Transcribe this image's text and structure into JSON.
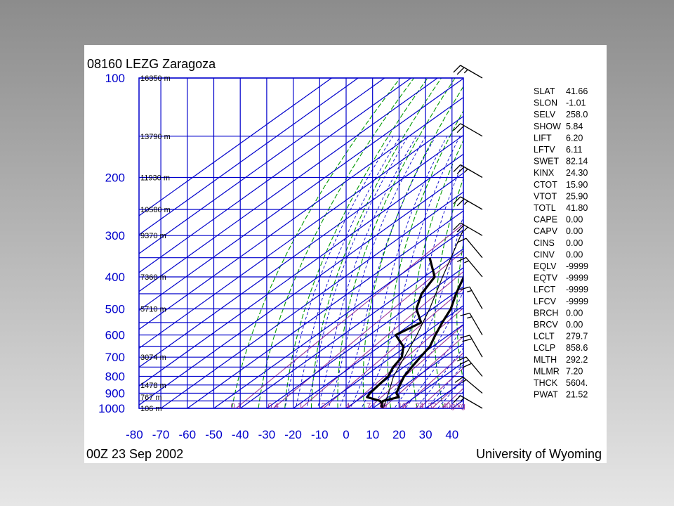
{
  "header": {
    "station_title": "08160 LEZG Zaragoza",
    "time_label": "00Z 23 Sep 2002",
    "source_label": "University of Wyoming"
  },
  "chart_data": {
    "type": "line",
    "title": "08160 LEZG Zaragoza",
    "diagram": "skew-T log-P",
    "y_axis": {
      "quantity": "pressure",
      "scale": "log",
      "reversed": true,
      "ticks": [
        100,
        200,
        300,
        400,
        500,
        600,
        700,
        800,
        900,
        1000
      ]
    },
    "x_axis": {
      "quantity": "temperature",
      "skewed": true,
      "ticks": [
        -80,
        -70,
        -60,
        -50,
        -40,
        -30,
        -20,
        -10,
        0,
        10,
        20,
        30,
        40
      ]
    },
    "height_labels": [
      {
        "p": 100,
        "text": "16350 m"
      },
      {
        "p": 150,
        "text": "13790 m"
      },
      {
        "p": 200,
        "text": "11930 m"
      },
      {
        "p": 250,
        "text": "10580 m"
      },
      {
        "p": 300,
        "text": "9370 m"
      },
      {
        "p": 400,
        "text": "7360 m"
      },
      {
        "p": 500,
        "text": "5710 m"
      },
      {
        "p": 700,
        "text": "3074 m"
      },
      {
        "p": 850,
        "text": "1478 m"
      },
      {
        "p": 925,
        "text": "767 m"
      },
      {
        "p": 1000,
        "text": "106 m"
      }
    ],
    "mixing_ratio_labels": [
      "0.1",
      "0.4",
      "1",
      "2",
      "4",
      "7",
      "10",
      "16",
      "24",
      "32",
      "40g/kg"
    ],
    "series": [
      {
        "role": "temperature",
        "color": "#000000",
        "points": [
          [
            1000,
            14
          ],
          [
            985,
            12
          ],
          [
            950,
            10
          ],
          [
            925,
            14
          ],
          [
            900,
            11
          ],
          [
            850,
            8
          ],
          [
            800,
            5
          ],
          [
            750,
            3
          ],
          [
            700,
            1
          ],
          [
            650,
            -1
          ],
          [
            600,
            -5
          ],
          [
            550,
            -9
          ],
          [
            500,
            -13
          ],
          [
            450,
            -19
          ],
          [
            400,
            -25
          ],
          [
            350,
            -33
          ],
          [
            300,
            -41
          ],
          [
            250,
            -49
          ],
          [
            200,
            -57
          ],
          [
            175,
            -58
          ],
          [
            150,
            -57
          ],
          [
            125,
            -56
          ],
          [
            100,
            -54
          ]
        ]
      },
      {
        "role": "dewpoint",
        "color": "#000000",
        "points": [
          [
            1000,
            14
          ],
          [
            950,
            9
          ],
          [
            925,
            2
          ],
          [
            900,
            1
          ],
          [
            850,
            0
          ],
          [
            800,
            -1
          ],
          [
            750,
            -4
          ],
          [
            700,
            -6
          ],
          [
            650,
            -11
          ],
          [
            600,
            -20
          ],
          [
            550,
            -17
          ],
          [
            500,
            -26
          ],
          [
            450,
            -32
          ],
          [
            400,
            -36
          ],
          [
            350,
            -48
          ]
        ]
      },
      {
        "role": "parcel",
        "color": "#000000",
        "points": [
          [
            1000,
            14
          ],
          [
            900,
            8
          ],
          [
            800,
            1
          ],
          [
            700,
            -5
          ],
          [
            600,
            -12
          ],
          [
            500,
            -21
          ],
          [
            400,
            -33
          ],
          [
            300,
            -48
          ],
          [
            250,
            -57
          ],
          [
            200,
            -67
          ],
          [
            180,
            -70
          ]
        ]
      }
    ],
    "wind_barbs": [
      {
        "p": 100,
        "dir": 300,
        "kt": 25
      },
      {
        "p": 150,
        "dir": 300,
        "kt": 20
      },
      {
        "p": 200,
        "dir": 300,
        "kt": 25
      },
      {
        "p": 250,
        "dir": 300,
        "kt": 25
      },
      {
        "p": 300,
        "dir": 300,
        "kt": 25
      },
      {
        "p": 350,
        "dir": 320,
        "kt": 10
      },
      {
        "p": 400,
        "dir": 320,
        "kt": 15
      },
      {
        "p": 500,
        "dir": 330,
        "kt": 15
      },
      {
        "p": 600,
        "dir": 330,
        "kt": 15
      },
      {
        "p": 700,
        "dir": 330,
        "kt": 20
      },
      {
        "p": 800,
        "dir": 320,
        "kt": 30
      },
      {
        "p": 900,
        "dir": 310,
        "kt": 15
      },
      {
        "p": 1000,
        "dir": 300,
        "kt": 15
      }
    ],
    "colors": {
      "frame": "#0000cc",
      "isotherm": "#0000cc",
      "dry_adiabat": "#009900",
      "moist_adiabat": "#0000cc",
      "mixing_ratio": "#993399",
      "profile": "#000000"
    }
  },
  "indices": [
    {
      "key": "SLAT",
      "value": "41.66"
    },
    {
      "key": "SLON",
      "value": "-1.01"
    },
    {
      "key": "SELV",
      "value": "258.0"
    },
    {
      "key": "SHOW",
      "value": "5.84"
    },
    {
      "key": "LIFT",
      "value": "6.20"
    },
    {
      "key": "LFTV",
      "value": "6.11"
    },
    {
      "key": "SWET",
      "value": "82.14"
    },
    {
      "key": "KINX",
      "value": "24.30"
    },
    {
      "key": "CTOT",
      "value": "15.90"
    },
    {
      "key": "VTOT",
      "value": "25.90"
    },
    {
      "key": "TOTL",
      "value": "41.80"
    },
    {
      "key": "CAPE",
      "value": "0.00"
    },
    {
      "key": "CAPV",
      "value": "0.00"
    },
    {
      "key": "CINS",
      "value": "0.00"
    },
    {
      "key": "CINV",
      "value": "0.00"
    },
    {
      "key": "EQLV",
      "value": "-9999"
    },
    {
      "key": "EQTV",
      "value": "-9999"
    },
    {
      "key": "LFCT",
      "value": "-9999"
    },
    {
      "key": "LFCV",
      "value": "-9999"
    },
    {
      "key": "BRCH",
      "value": "0.00"
    },
    {
      "key": "BRCV",
      "value": "0.00"
    },
    {
      "key": "LCLT",
      "value": "279.7"
    },
    {
      "key": "LCLP",
      "value": "858.6"
    },
    {
      "key": "MLTH",
      "value": "292.2"
    },
    {
      "key": "MLMR",
      "value": "7.20"
    },
    {
      "key": "THCK",
      "value": "5604."
    },
    {
      "key": "PWAT",
      "value": "21.52"
    }
  ]
}
